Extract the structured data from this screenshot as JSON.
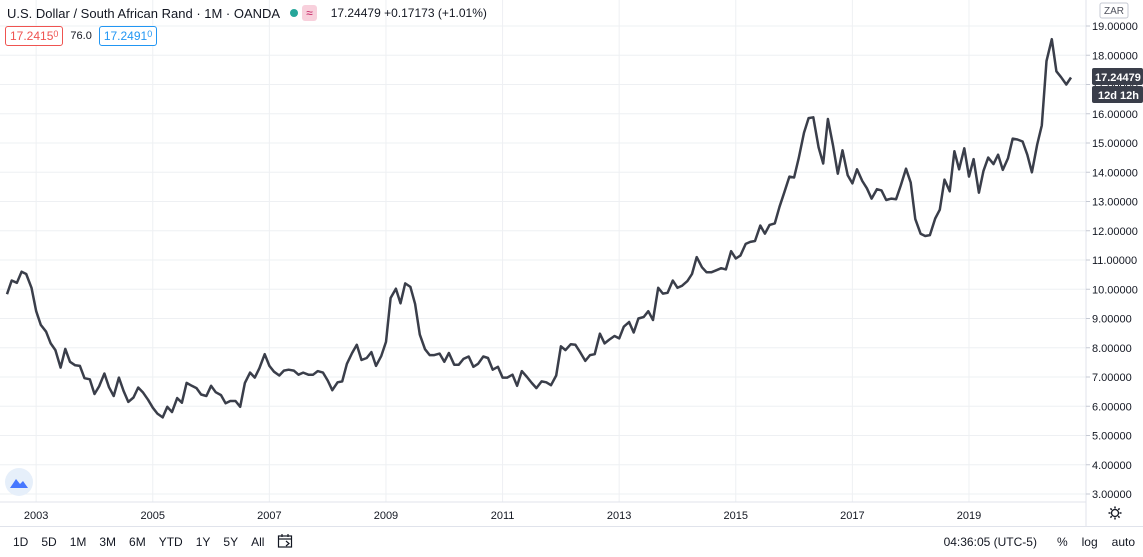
{
  "header": {
    "title": "U.S. Dollar / South African Rand · 1M · OANDA",
    "indicator_icon": "approx-icon",
    "last_price": "17.24479",
    "change": "+0.17173 (+1.01%)"
  },
  "trade": {
    "sell_main": "17.2415",
    "sell_sup": "0",
    "spread": "76.0",
    "buy_main": "17.2491",
    "buy_sup": "0"
  },
  "price_axis": {
    "currency": "ZAR",
    "current_label": "17.24479",
    "countdown_label": "12d 12h"
  },
  "bottom_bar": {
    "ranges": [
      "1D",
      "5D",
      "1M",
      "3M",
      "6M",
      "YTD",
      "1Y",
      "5Y",
      "All"
    ],
    "time": "04:36:05 (UTC-5)",
    "percent": "%",
    "log": "log",
    "auto": "auto"
  },
  "colors": {
    "line": "#3a3e4a",
    "grid": "#eef0f3",
    "accent_blue": "#2196f3",
    "accent_red": "#ef5350"
  },
  "chart_data": {
    "type": "line",
    "ylim": [
      3.0,
      19.0
    ],
    "xlim": [
      2002.5,
      2020.9
    ],
    "y_ticks": [
      "19.00000",
      "18.00000",
      "17.00000",
      "16.00000",
      "15.00000",
      "14.00000",
      "13.00000",
      "12.00000",
      "11.00000",
      "10.00000",
      "9.00000",
      "8.00000",
      "7.00000",
      "6.00000",
      "5.00000",
      "4.00000",
      "3.00000"
    ],
    "x_ticks": [
      {
        "label": "2003",
        "year": 2003
      },
      {
        "label": "2005",
        "year": 2005
      },
      {
        "label": "2007",
        "year": 2007
      },
      {
        "label": "2009",
        "year": 2009
      },
      {
        "label": "2011",
        "year": 2011
      },
      {
        "label": "2013",
        "year": 2013
      },
      {
        "label": "2015",
        "year": 2015
      },
      {
        "label": "2017",
        "year": 2017
      },
      {
        "label": "2019",
        "year": 2019
      }
    ],
    "series": [
      {
        "values": [
          [
            2002.5,
            9.83
          ],
          [
            2002.58,
            10.3
          ],
          [
            2002.67,
            10.22
          ],
          [
            2002.75,
            10.6
          ],
          [
            2002.83,
            10.52
          ],
          [
            2002.92,
            10.05
          ],
          [
            2003.0,
            9.25
          ],
          [
            2003.08,
            8.78
          ],
          [
            2003.17,
            8.55
          ],
          [
            2003.25,
            8.15
          ],
          [
            2003.33,
            7.92
          ],
          [
            2003.42,
            7.32
          ],
          [
            2003.5,
            7.96
          ],
          [
            2003.58,
            7.52
          ],
          [
            2003.67,
            7.4
          ],
          [
            2003.75,
            7.38
          ],
          [
            2003.83,
            6.96
          ],
          [
            2003.92,
            6.92
          ],
          [
            2004.0,
            6.42
          ],
          [
            2004.08,
            6.68
          ],
          [
            2004.17,
            7.12
          ],
          [
            2004.25,
            6.65
          ],
          [
            2004.33,
            6.35
          ],
          [
            2004.42,
            6.98
          ],
          [
            2004.5,
            6.52
          ],
          [
            2004.58,
            6.15
          ],
          [
            2004.67,
            6.3
          ],
          [
            2004.75,
            6.64
          ],
          [
            2004.83,
            6.48
          ],
          [
            2004.92,
            6.22
          ],
          [
            2005.0,
            5.95
          ],
          [
            2005.08,
            5.75
          ],
          [
            2005.17,
            5.62
          ],
          [
            2005.25,
            5.98
          ],
          [
            2005.33,
            5.8
          ],
          [
            2005.42,
            6.28
          ],
          [
            2005.5,
            6.12
          ],
          [
            2005.58,
            6.8
          ],
          [
            2005.67,
            6.7
          ],
          [
            2005.75,
            6.62
          ],
          [
            2005.83,
            6.4
          ],
          [
            2005.92,
            6.35
          ],
          [
            2006.0,
            6.7
          ],
          [
            2006.08,
            6.48
          ],
          [
            2006.17,
            6.38
          ],
          [
            2006.25,
            6.1
          ],
          [
            2006.33,
            6.18
          ],
          [
            2006.42,
            6.18
          ],
          [
            2006.5,
            5.98
          ],
          [
            2006.58,
            6.8
          ],
          [
            2006.67,
            7.15
          ],
          [
            2006.75,
            6.98
          ],
          [
            2006.83,
            7.3
          ],
          [
            2006.92,
            7.78
          ],
          [
            2007.0,
            7.38
          ],
          [
            2007.08,
            7.18
          ],
          [
            2007.17,
            7.05
          ],
          [
            2007.25,
            7.22
          ],
          [
            2007.33,
            7.25
          ],
          [
            2007.42,
            7.22
          ],
          [
            2007.5,
            7.08
          ],
          [
            2007.58,
            7.15
          ],
          [
            2007.67,
            7.08
          ],
          [
            2007.75,
            7.08
          ],
          [
            2007.83,
            7.2
          ],
          [
            2007.92,
            7.15
          ],
          [
            2008.0,
            6.88
          ],
          [
            2008.08,
            6.55
          ],
          [
            2008.17,
            6.82
          ],
          [
            2008.25,
            6.85
          ],
          [
            2008.33,
            7.45
          ],
          [
            2008.42,
            7.82
          ],
          [
            2008.5,
            8.1
          ],
          [
            2008.58,
            7.58
          ],
          [
            2008.67,
            7.65
          ],
          [
            2008.75,
            7.85
          ],
          [
            2008.83,
            7.38
          ],
          [
            2008.92,
            7.72
          ],
          [
            2009.0,
            8.2
          ],
          [
            2009.08,
            9.7
          ],
          [
            2009.17,
            10.02
          ],
          [
            2009.25,
            9.52
          ],
          [
            2009.33,
            10.2
          ],
          [
            2009.42,
            10.08
          ],
          [
            2009.5,
            9.5
          ],
          [
            2009.58,
            8.45
          ],
          [
            2009.67,
            7.95
          ],
          [
            2009.75,
            7.75
          ],
          [
            2009.83,
            7.75
          ],
          [
            2009.92,
            7.8
          ],
          [
            2010.0,
            7.52
          ],
          [
            2010.08,
            7.82
          ],
          [
            2010.17,
            7.42
          ],
          [
            2010.25,
            7.42
          ],
          [
            2010.33,
            7.62
          ],
          [
            2010.42,
            7.7
          ],
          [
            2010.5,
            7.35
          ],
          [
            2010.58,
            7.45
          ],
          [
            2010.67,
            7.7
          ],
          [
            2010.75,
            7.65
          ],
          [
            2010.83,
            7.25
          ],
          [
            2010.92,
            7.35
          ],
          [
            2011.0,
            6.98
          ],
          [
            2011.08,
            6.98
          ],
          [
            2011.17,
            7.08
          ],
          [
            2011.25,
            6.7
          ],
          [
            2011.33,
            7.2
          ],
          [
            2011.42,
            7.0
          ],
          [
            2011.5,
            6.8
          ],
          [
            2011.58,
            6.62
          ],
          [
            2011.67,
            6.85
          ],
          [
            2011.75,
            6.82
          ],
          [
            2011.83,
            6.72
          ],
          [
            2011.92,
            7.05
          ],
          [
            2012.0,
            8.05
          ],
          [
            2012.08,
            7.92
          ],
          [
            2012.17,
            8.12
          ],
          [
            2012.25,
            8.1
          ],
          [
            2012.33,
            7.85
          ],
          [
            2012.42,
            7.55
          ],
          [
            2012.5,
            7.75
          ],
          [
            2012.58,
            7.78
          ],
          [
            2012.67,
            8.48
          ],
          [
            2012.75,
            8.15
          ],
          [
            2012.83,
            8.28
          ],
          [
            2012.92,
            8.4
          ],
          [
            2013.0,
            8.32
          ],
          [
            2013.08,
            8.72
          ],
          [
            2013.17,
            8.88
          ],
          [
            2013.25,
            8.52
          ],
          [
            2013.33,
            9.0
          ],
          [
            2013.42,
            9.05
          ],
          [
            2013.5,
            9.25
          ],
          [
            2013.58,
            8.95
          ],
          [
            2013.67,
            10.05
          ],
          [
            2013.75,
            9.85
          ],
          [
            2013.83,
            9.88
          ],
          [
            2013.92,
            10.3
          ],
          [
            2014.0,
            10.05
          ],
          [
            2014.08,
            10.12
          ],
          [
            2014.17,
            10.28
          ],
          [
            2014.25,
            10.52
          ],
          [
            2014.33,
            11.1
          ],
          [
            2014.42,
            10.75
          ],
          [
            2014.5,
            10.58
          ],
          [
            2014.58,
            10.58
          ],
          [
            2014.67,
            10.65
          ],
          [
            2014.75,
            10.72
          ],
          [
            2014.83,
            10.68
          ],
          [
            2014.92,
            11.3
          ],
          [
            2015.0,
            11.05
          ],
          [
            2015.08,
            11.15
          ],
          [
            2015.17,
            11.55
          ],
          [
            2015.25,
            11.62
          ],
          [
            2015.33,
            11.65
          ],
          [
            2015.42,
            12.18
          ],
          [
            2015.5,
            11.9
          ],
          [
            2015.58,
            12.2
          ],
          [
            2015.67,
            12.25
          ],
          [
            2015.75,
            12.82
          ],
          [
            2015.83,
            13.3
          ],
          [
            2015.92,
            13.85
          ],
          [
            2016.0,
            13.82
          ],
          [
            2016.08,
            14.48
          ],
          [
            2016.17,
            15.35
          ],
          [
            2016.25,
            15.85
          ],
          [
            2016.33,
            15.88
          ],
          [
            2016.42,
            14.85
          ],
          [
            2016.5,
            14.3
          ],
          [
            2016.58,
            15.82
          ],
          [
            2016.67,
            14.9
          ],
          [
            2016.75,
            13.95
          ],
          [
            2016.83,
            14.75
          ],
          [
            2016.92,
            13.9
          ],
          [
            2017.0,
            13.62
          ],
          [
            2017.08,
            14.1
          ],
          [
            2017.17,
            13.7
          ],
          [
            2017.25,
            13.45
          ],
          [
            2017.33,
            13.1
          ],
          [
            2017.42,
            13.42
          ],
          [
            2017.5,
            13.38
          ],
          [
            2017.58,
            13.05
          ],
          [
            2017.67,
            13.1
          ],
          [
            2017.75,
            13.08
          ],
          [
            2017.83,
            13.55
          ],
          [
            2017.92,
            14.12
          ],
          [
            2018.0,
            13.65
          ],
          [
            2018.08,
            12.4
          ],
          [
            2018.17,
            11.9
          ],
          [
            2018.25,
            11.82
          ],
          [
            2018.33,
            11.85
          ],
          [
            2018.42,
            12.42
          ],
          [
            2018.5,
            12.72
          ],
          [
            2018.58,
            13.75
          ],
          [
            2018.67,
            13.35
          ],
          [
            2018.75,
            14.72
          ],
          [
            2018.83,
            14.1
          ],
          [
            2018.92,
            14.82
          ],
          [
            2019.0,
            13.85
          ],
          [
            2019.08,
            14.45
          ],
          [
            2019.17,
            13.3
          ],
          [
            2019.25,
            14.05
          ],
          [
            2019.33,
            14.5
          ],
          [
            2019.42,
            14.28
          ],
          [
            2019.5,
            14.6
          ],
          [
            2019.58,
            14.08
          ],
          [
            2019.67,
            14.48
          ],
          [
            2019.75,
            15.15
          ],
          [
            2019.83,
            15.12
          ],
          [
            2019.92,
            15.05
          ],
          [
            2020.0,
            14.6
          ],
          [
            2020.08,
            14.0
          ],
          [
            2020.17,
            14.95
          ],
          [
            2020.25,
            15.6
          ],
          [
            2020.33,
            17.8
          ],
          [
            2020.42,
            18.55
          ],
          [
            2020.5,
            17.45
          ],
          [
            2020.58,
            17.25
          ],
          [
            2020.67,
            17.0
          ],
          [
            2020.75,
            17.24
          ]
        ]
      }
    ]
  }
}
